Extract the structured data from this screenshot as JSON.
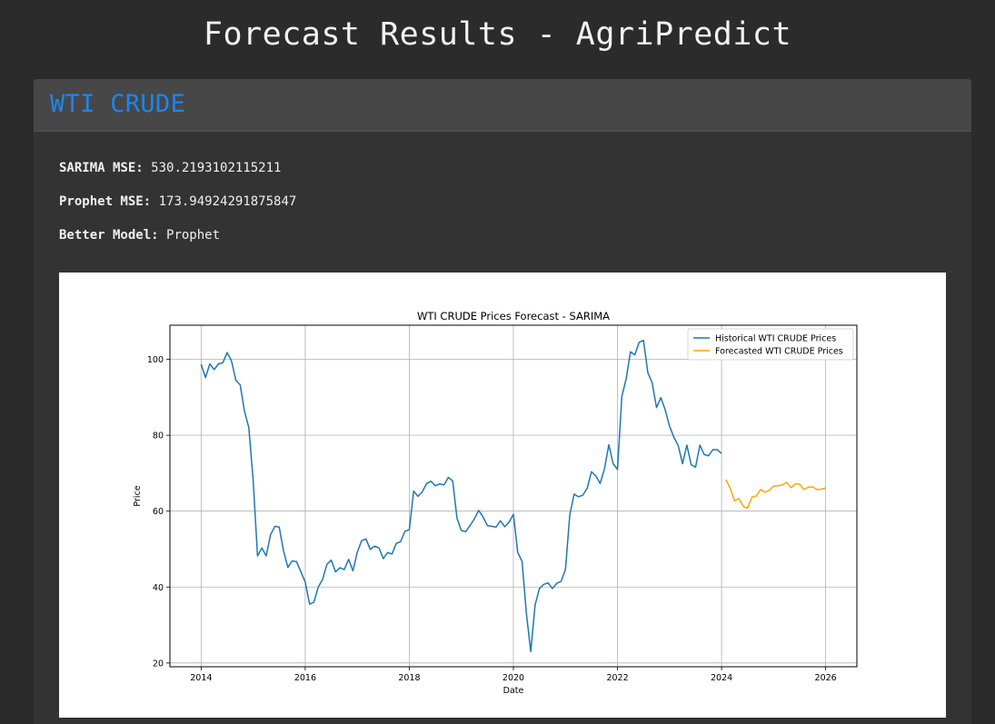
{
  "page": {
    "title": "Forecast Results - AgriPredict"
  },
  "card": {
    "commodity": "WTI CRUDE",
    "stats": [
      {
        "label": "SARIMA MSE:",
        "value": "530.2193102115211"
      },
      {
        "label": "Prophet MSE:",
        "value": "173.94924291875847"
      },
      {
        "label": "Better Model:",
        "value": "Prophet"
      }
    ]
  },
  "colors": {
    "background": "#2b2b2b",
    "card": "#333333",
    "card_header": "#474747",
    "accent": "#1b86f2",
    "historical_line": "#1f77b4",
    "forecast_line": "#ffa500"
  },
  "chart_data": {
    "type": "line",
    "title": "WTI CRUDE Prices Forecast - SARIMA",
    "xlabel": "Date",
    "ylabel": "Price",
    "xlim": [
      2013.4,
      2026.6
    ],
    "ylim": [
      19,
      109
    ],
    "xticks": [
      2014,
      2016,
      2018,
      2020,
      2022,
      2024,
      2026
    ],
    "xtick_labels": [
      "2014",
      "2016",
      "2018",
      "2020",
      "2022",
      "2024",
      "2026"
    ],
    "yticks": [
      20,
      40,
      60,
      80,
      100
    ],
    "ytick_labels": [
      "20",
      "40",
      "60",
      "80",
      "100"
    ],
    "grid": true,
    "legend_position": "upper right",
    "series": [
      {
        "name": "Historical WTI CRUDE Prices",
        "color": "#1f77b4",
        "start": 2014.0,
        "step": 0.0833333,
        "values": [
          98.7,
          95.2,
          98.8,
          97.3,
          98.8,
          99.1,
          101.8,
          99.6,
          94.5,
          93.3,
          86.3,
          82.0,
          68.0,
          48.2,
          50.3,
          48.2,
          53.8,
          56.0,
          55.8,
          49.5,
          45.2,
          46.9,
          46.7,
          44.0,
          41.3,
          35.5,
          36.0,
          40.0,
          42.0,
          46.0,
          47.1,
          44.0,
          45.1,
          44.6,
          47.3,
          44.3,
          49.2,
          52.2,
          52.7,
          49.9,
          50.8,
          50.3,
          47.5,
          49.1,
          48.7,
          51.5,
          52.0,
          54.7,
          55.1,
          65.3,
          63.9,
          65.1,
          67.3,
          67.9,
          66.7,
          67.2,
          66.9,
          68.9,
          68.0,
          58.1,
          54.9,
          54.6,
          56.2,
          58.0,
          60.2,
          58.5,
          56.2,
          56.0,
          55.8,
          57.5,
          55.9,
          57.1,
          59.2,
          49.1,
          46.8,
          33.0,
          23.0,
          35.3,
          39.6,
          40.7,
          41.1,
          39.6,
          41.0,
          41.5,
          44.6,
          59.0,
          64.5,
          63.8,
          64.2,
          66.0,
          70.4,
          69.3,
          67.3,
          71.2,
          77.5,
          72.5,
          71.0,
          90.2,
          94.9,
          102.0,
          101.2,
          104.5,
          105.0,
          96.5,
          93.8,
          87.3,
          89.9,
          86.7,
          82.4,
          79.5,
          77.3,
          72.5,
          77.4,
          72.2,
          71.6,
          77.4,
          74.9,
          74.6,
          76.2,
          76.2,
          75.2
        ]
      },
      {
        "name": "Forecasted WTI CRUDE Prices",
        "color": "#ffa500",
        "start": 2024.0833,
        "step": 0.0833333,
        "values": [
          68.3,
          66.0,
          62.7,
          63.3,
          61.3,
          60.8,
          63.7,
          64.0,
          65.7,
          65.0,
          65.5,
          66.6,
          66.7,
          66.9,
          67.6,
          66.2,
          67.2,
          67.1,
          65.7,
          66.3,
          66.4,
          65.7,
          65.8,
          66.1
        ]
      }
    ]
  }
}
